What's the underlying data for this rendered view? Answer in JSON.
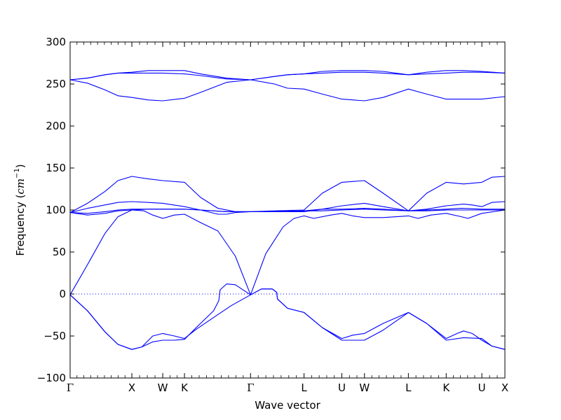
{
  "chart_data": {
    "type": "line",
    "title": "",
    "xlabel": "Wave vector",
    "ylabel_prefix": "Frequency (",
    "ylabel_unit": "cm",
    "ylabel_exp": "−1",
    "ylabel_suffix": ")",
    "ylim": [
      -100,
      300
    ],
    "yticks": [
      -100,
      -50,
      0,
      50,
      100,
      150,
      200,
      250,
      300
    ],
    "ytick_labels": [
      "−100",
      "−50",
      "0",
      "50",
      "100",
      "150",
      "200",
      "250",
      "300"
    ],
    "xlim": [
      0,
      1
    ],
    "high_symmetry_points": [
      {
        "label": "Γ",
        "x": 0.0
      },
      {
        "label": "X",
        "x": 0.142
      },
      {
        "label": "W",
        "x": 0.213
      },
      {
        "label": "K",
        "x": 0.263
      },
      {
        "label": "Γ",
        "x": 0.415
      },
      {
        "label": "L",
        "x": 0.538
      },
      {
        "label": "U",
        "x": 0.625
      },
      {
        "label": "W",
        "x": 0.677
      },
      {
        "label": "L",
        "x": 0.778
      },
      {
        "label": "K",
        "x": 0.865
      },
      {
        "label": "U",
        "x": 0.947
      },
      {
        "label": "X",
        "x": 1.0
      }
    ],
    "zero_line": {
      "y": 0,
      "style": "dotted"
    },
    "line_color": "#0000ff",
    "grid": false,
    "series": [
      {
        "points": [
          [
            0,
            -1
          ],
          [
            0.04,
            -20
          ],
          [
            0.08,
            -45
          ],
          [
            0.11,
            -60
          ],
          [
            0.142,
            -66
          ],
          [
            0.165,
            -63
          ],
          [
            0.19,
            -50
          ],
          [
            0.213,
            -47
          ],
          [
            0.24,
            -50
          ],
          [
            0.263,
            -53
          ],
          [
            0.29,
            -42
          ],
          [
            0.33,
            -28
          ],
          [
            0.37,
            -14
          ],
          [
            0.415,
            -1
          ]
        ]
      },
      {
        "points": [
          [
            0,
            -1
          ],
          [
            0.04,
            -20
          ],
          [
            0.08,
            -45
          ],
          [
            0.11,
            -60
          ],
          [
            0.142,
            -66
          ],
          [
            0.165,
            -63
          ],
          [
            0.19,
            -57
          ],
          [
            0.213,
            -55
          ],
          [
            0.24,
            -55
          ],
          [
            0.263,
            -54
          ],
          [
            0.29,
            -40
          ],
          [
            0.33,
            -20
          ],
          [
            0.342,
            -8
          ],
          [
            0.345,
            5
          ],
          [
            0.36,
            12
          ],
          [
            0.38,
            11
          ],
          [
            0.415,
            -1
          ],
          [
            0.44,
            6
          ],
          [
            0.465,
            6
          ],
          [
            0.475,
            2
          ],
          [
            0.477,
            -6
          ],
          [
            0.5,
            -17
          ],
          [
            0.538,
            -22
          ],
          [
            0.58,
            -40
          ],
          [
            0.625,
            -53
          ],
          [
            0.65,
            -49
          ],
          [
            0.677,
            -47
          ],
          [
            0.72,
            -35
          ],
          [
            0.778,
            -22
          ],
          [
            0.82,
            -35
          ],
          [
            0.865,
            -53
          ],
          [
            0.89,
            -47
          ],
          [
            0.905,
            -44
          ],
          [
            0.925,
            -47
          ],
          [
            0.947,
            -55
          ],
          [
            0.97,
            -62
          ],
          [
            1.0,
            -66
          ]
        ]
      },
      {
        "points": [
          [
            0.415,
            -1
          ],
          [
            0.44,
            6
          ],
          [
            0.465,
            6
          ],
          [
            0.475,
            2
          ],
          [
            0.477,
            -6
          ],
          [
            0.5,
            -17
          ],
          [
            0.538,
            -22
          ],
          [
            0.58,
            -40
          ],
          [
            0.625,
            -55
          ],
          [
            0.65,
            -55
          ],
          [
            0.677,
            -55
          ],
          [
            0.72,
            -43
          ],
          [
            0.778,
            -22
          ],
          [
            0.82,
            -35
          ],
          [
            0.865,
            -55
          ],
          [
            0.905,
            -52
          ],
          [
            0.947,
            -53
          ],
          [
            0.97,
            -62
          ],
          [
            1.0,
            -66
          ]
        ]
      },
      {
        "points": [
          [
            0,
            -1
          ],
          [
            0.04,
            35
          ],
          [
            0.08,
            72
          ],
          [
            0.11,
            92
          ],
          [
            0.142,
            100
          ],
          [
            0.17,
            99
          ],
          [
            0.19,
            94
          ],
          [
            0.213,
            90
          ],
          [
            0.24,
            94
          ],
          [
            0.263,
            95
          ],
          [
            0.3,
            85
          ],
          [
            0.34,
            75
          ],
          [
            0.38,
            45
          ],
          [
            0.415,
            -1
          ],
          [
            0.45,
            48
          ],
          [
            0.49,
            80
          ],
          [
            0.515,
            90
          ],
          [
            0.538,
            93
          ],
          [
            0.56,
            90
          ],
          [
            0.6,
            94
          ],
          [
            0.625,
            96
          ],
          [
            0.65,
            93
          ],
          [
            0.677,
            91
          ],
          [
            0.72,
            91
          ],
          [
            0.778,
            93
          ],
          [
            0.8,
            90
          ],
          [
            0.83,
            94
          ],
          [
            0.865,
            96
          ],
          [
            0.9,
            92
          ],
          [
            0.915,
            90
          ],
          [
            0.947,
            96
          ],
          [
            1.0,
            100
          ]
        ]
      },
      {
        "points": [
          [
            0,
            97
          ],
          [
            0.04,
            96
          ],
          [
            0.08,
            98
          ],
          [
            0.11,
            100
          ],
          [
            0.142,
            101
          ],
          [
            0.18,
            101
          ],
          [
            0.213,
            101
          ],
          [
            0.263,
            101
          ],
          [
            0.3,
            100
          ],
          [
            0.36,
            98
          ],
          [
            0.415,
            98
          ],
          [
            0.47,
            98
          ],
          [
            0.538,
            99
          ],
          [
            0.58,
            101
          ],
          [
            0.625,
            101
          ],
          [
            0.677,
            102
          ],
          [
            0.72,
            101
          ],
          [
            0.778,
            99
          ],
          [
            0.82,
            100
          ],
          [
            0.865,
            101
          ],
          [
            0.9,
            102
          ],
          [
            0.947,
            101
          ],
          [
            1.0,
            101
          ]
        ]
      },
      {
        "points": [
          [
            0,
            97
          ],
          [
            0.04,
            94
          ],
          [
            0.08,
            96
          ],
          [
            0.11,
            99
          ],
          [
            0.142,
            100
          ],
          [
            0.18,
            101
          ],
          [
            0.213,
            101
          ],
          [
            0.263,
            101
          ],
          [
            0.3,
            100
          ],
          [
            0.34,
            95
          ],
          [
            0.36,
            95
          ],
          [
            0.38,
            97
          ],
          [
            0.415,
            98
          ],
          [
            0.47,
            98
          ],
          [
            0.538,
            99
          ],
          [
            0.58,
            99
          ],
          [
            0.625,
            100
          ],
          [
            0.677,
            101
          ],
          [
            0.72,
            100
          ],
          [
            0.778,
            99
          ],
          [
            0.82,
            99
          ],
          [
            0.865,
            100
          ],
          [
            0.9,
            100
          ],
          [
            0.947,
            100
          ],
          [
            1.0,
            100
          ]
        ]
      },
      {
        "points": [
          [
            0,
            97
          ],
          [
            0.04,
            102
          ],
          [
            0.08,
            106
          ],
          [
            0.11,
            109
          ],
          [
            0.142,
            110
          ],
          [
            0.18,
            109
          ],
          [
            0.213,
            108
          ],
          [
            0.263,
            104
          ],
          [
            0.3,
            100
          ],
          [
            0.36,
            98
          ],
          [
            0.415,
            98
          ],
          [
            0.47,
            98
          ],
          [
            0.538,
            98
          ],
          [
            0.58,
            101
          ],
          [
            0.625,
            105
          ],
          [
            0.677,
            108
          ],
          [
            0.72,
            104
          ],
          [
            0.778,
            99
          ],
          [
            0.82,
            101
          ],
          [
            0.865,
            105
          ],
          [
            0.905,
            107
          ],
          [
            0.925,
            106
          ],
          [
            0.947,
            104
          ],
          [
            0.97,
            109
          ],
          [
            1.0,
            110
          ]
        ]
      },
      {
        "points": [
          [
            0,
            97
          ],
          [
            0.04,
            108
          ],
          [
            0.08,
            122
          ],
          [
            0.11,
            135
          ],
          [
            0.142,
            140
          ],
          [
            0.18,
            137
          ],
          [
            0.213,
            135
          ],
          [
            0.263,
            133
          ],
          [
            0.3,
            115
          ],
          [
            0.34,
            102
          ],
          [
            0.38,
            98
          ],
          [
            0.415,
            98
          ],
          [
            0.47,
            99
          ],
          [
            0.538,
            100
          ],
          [
            0.58,
            120
          ],
          [
            0.625,
            133
          ],
          [
            0.677,
            135
          ],
          [
            0.72,
            120
          ],
          [
            0.778,
            99
          ],
          [
            0.82,
            120
          ],
          [
            0.865,
            133
          ],
          [
            0.905,
            131
          ],
          [
            0.947,
            133
          ],
          [
            0.97,
            139
          ],
          [
            1.0,
            140
          ]
        ]
      },
      {
        "points": [
          [
            0,
            255
          ],
          [
            0.04,
            251
          ],
          [
            0.08,
            243
          ],
          [
            0.11,
            236
          ],
          [
            0.142,
            234
          ],
          [
            0.18,
            231
          ],
          [
            0.213,
            230
          ],
          [
            0.263,
            233
          ],
          [
            0.3,
            240
          ],
          [
            0.36,
            252
          ],
          [
            0.415,
            255
          ],
          [
            0.47,
            250
          ],
          [
            0.5,
            245
          ],
          [
            0.538,
            244
          ],
          [
            0.58,
            238
          ],
          [
            0.625,
            232
          ],
          [
            0.677,
            230
          ],
          [
            0.72,
            234
          ],
          [
            0.778,
            244
          ],
          [
            0.82,
            238
          ],
          [
            0.865,
            232
          ],
          [
            0.905,
            232
          ],
          [
            0.947,
            232
          ],
          [
            1.0,
            235
          ]
        ]
      },
      {
        "points": [
          [
            0,
            255
          ],
          [
            0.04,
            257
          ],
          [
            0.08,
            261
          ],
          [
            0.11,
            263
          ],
          [
            0.142,
            263
          ],
          [
            0.18,
            263
          ],
          [
            0.213,
            263
          ],
          [
            0.263,
            262
          ],
          [
            0.3,
            260
          ],
          [
            0.36,
            256
          ],
          [
            0.415,
            255
          ],
          [
            0.47,
            259
          ],
          [
            0.5,
            261
          ],
          [
            0.538,
            262
          ],
          [
            0.58,
            263
          ],
          [
            0.625,
            264
          ],
          [
            0.677,
            264
          ],
          [
            0.72,
            263
          ],
          [
            0.778,
            261
          ],
          [
            0.82,
            262
          ],
          [
            0.865,
            263
          ],
          [
            0.905,
            264
          ],
          [
            0.947,
            264
          ],
          [
            1.0,
            263
          ]
        ]
      },
      {
        "points": [
          [
            0,
            255
          ],
          [
            0.04,
            257
          ],
          [
            0.08,
            261
          ],
          [
            0.11,
            263
          ],
          [
            0.142,
            264
          ],
          [
            0.18,
            266
          ],
          [
            0.213,
            266
          ],
          [
            0.263,
            266
          ],
          [
            0.3,
            262
          ],
          [
            0.36,
            257
          ],
          [
            0.415,
            255
          ],
          [
            0.47,
            259
          ],
          [
            0.5,
            261
          ],
          [
            0.538,
            262
          ],
          [
            0.58,
            265
          ],
          [
            0.625,
            266
          ],
          [
            0.677,
            266
          ],
          [
            0.72,
            265
          ],
          [
            0.778,
            261
          ],
          [
            0.82,
            264
          ],
          [
            0.865,
            266
          ],
          [
            0.905,
            266
          ],
          [
            0.947,
            265
          ],
          [
            1.0,
            263
          ]
        ]
      }
    ]
  }
}
